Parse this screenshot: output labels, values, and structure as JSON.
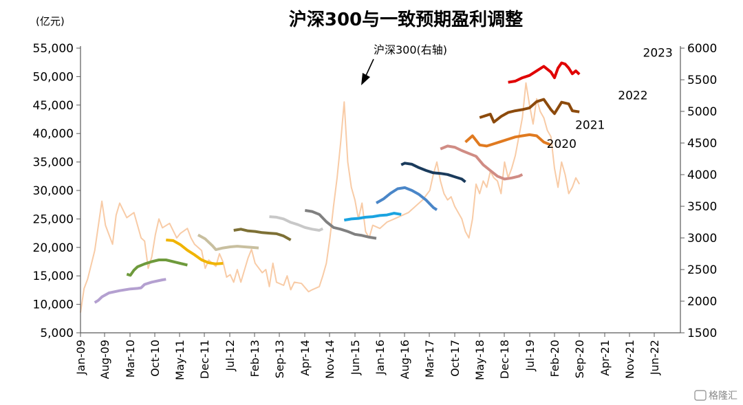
{
  "chart_data": {
    "type": "line",
    "title": "沪深300与一致预期盈利调整",
    "left_unit": "(亿元)",
    "left_axis": {
      "min": 5000,
      "max": 55000,
      "ticks": [
        "55,000",
        "50,000",
        "45,000",
        "40,000",
        "35,000",
        "30,000",
        "25,000",
        "20,000",
        "15,000",
        "10,000",
        "5,000"
      ]
    },
    "right_axis": {
      "min": 1500,
      "max": 6000,
      "ticks": [
        "6000",
        "5500",
        "5000",
        "4500",
        "4000",
        "3500",
        "3000",
        "2500",
        "2000",
        "1500"
      ]
    },
    "x_ticks": [
      "Jan-09",
      "Aug-09",
      "Mar-10",
      "Oct-10",
      "May-11",
      "Dec-11",
      "Jul-12",
      "Feb-13",
      "Sep-13",
      "Apr-14",
      "Nov-14",
      "Jun-15",
      "Jan-16",
      "Aug-16",
      "Mar-17",
      "Oct-17",
      "May-18",
      "Dec-18",
      "Jul-19",
      "Feb-20",
      "Sep-20",
      "Apr-21",
      "Nov-21",
      "Jun-22"
    ],
    "annotation": "沪深300(右轴)",
    "year_labels": [
      {
        "text": "2020",
        "t": 135,
        "v": 37500
      },
      {
        "text": "2021",
        "t": 143,
        "v": 40800
      },
      {
        "text": "2022",
        "t": 155,
        "v": 46000
      },
      {
        "text": "2023",
        "t": 162,
        "v": 53500
      }
    ],
    "index_series": {
      "name": "沪深300",
      "color": "#f8cba6",
      "axis": "right",
      "points": [
        [
          0,
          1820
        ],
        [
          1,
          2200
        ],
        [
          2,
          2350
        ],
        [
          4,
          2800
        ],
        [
          6,
          3580
        ],
        [
          7,
          3200
        ],
        [
          9,
          2900
        ],
        [
          10,
          3360
        ],
        [
          11,
          3550
        ],
        [
          13,
          3320
        ],
        [
          15,
          3400
        ],
        [
          17,
          3000
        ],
        [
          18,
          2950
        ],
        [
          19,
          2520
        ],
        [
          20,
          2700
        ],
        [
          21,
          3050
        ],
        [
          22,
          3300
        ],
        [
          23,
          3160
        ],
        [
          25,
          3230
        ],
        [
          27,
          3000
        ],
        [
          28,
          3070
        ],
        [
          30,
          3150
        ],
        [
          31,
          3000
        ],
        [
          32,
          2900
        ],
        [
          34,
          2800
        ],
        [
          35,
          2520
        ],
        [
          36,
          2650
        ],
        [
          38,
          2550
        ],
        [
          39,
          2750
        ],
        [
          40,
          2620
        ],
        [
          41,
          2380
        ],
        [
          42,
          2420
        ],
        [
          43,
          2300
        ],
        [
          44,
          2500
        ],
        [
          45,
          2300
        ],
        [
          47,
          2680
        ],
        [
          48,
          2820
        ],
        [
          49,
          2600
        ],
        [
          51,
          2450
        ],
        [
          52,
          2500
        ],
        [
          53,
          2230
        ],
        [
          54,
          2600
        ],
        [
          55,
          2300
        ],
        [
          57,
          2250
        ],
        [
          58,
          2400
        ],
        [
          59,
          2180
        ],
        [
          60,
          2300
        ],
        [
          62,
          2280
        ],
        [
          64,
          2150
        ],
        [
          65,
          2180
        ],
        [
          67,
          2230
        ],
        [
          68,
          2400
        ],
        [
          69,
          2600
        ],
        [
          70,
          3000
        ],
        [
          71,
          3500
        ],
        [
          72,
          3950
        ],
        [
          73,
          4500
        ],
        [
          74,
          5150
        ],
        [
          75,
          4200
        ],
        [
          76,
          3800
        ],
        [
          77,
          3600
        ],
        [
          78,
          3300
        ],
        [
          79,
          3550
        ],
        [
          80,
          3100
        ],
        [
          81,
          3000
        ],
        [
          82,
          3200
        ],
        [
          84,
          3150
        ],
        [
          86,
          3250
        ],
        [
          88,
          3300
        ],
        [
          90,
          3350
        ],
        [
          92,
          3400
        ],
        [
          94,
          3500
        ],
        [
          96,
          3600
        ],
        [
          98,
          3750
        ],
        [
          99,
          4000
        ],
        [
          100,
          4200
        ],
        [
          101,
          3900
        ],
        [
          102,
          3700
        ],
        [
          103,
          3600
        ],
        [
          104,
          3650
        ],
        [
          105,
          3500
        ],
        [
          106,
          3400
        ],
        [
          107,
          3300
        ],
        [
          108,
          3100
        ],
        [
          109,
          3000
        ],
        [
          110,
          3300
        ],
        [
          111,
          3850
        ],
        [
          112,
          3700
        ],
        [
          113,
          3900
        ],
        [
          114,
          3800
        ],
        [
          115,
          4050
        ],
        [
          116,
          3950
        ],
        [
          117,
          3900
        ],
        [
          118,
          3700
        ],
        [
          119,
          4200
        ],
        [
          120,
          3950
        ],
        [
          121,
          4100
        ],
        [
          122,
          4300
        ],
        [
          123,
          4600
        ],
        [
          124,
          4900
        ],
        [
          125,
          5450
        ],
        [
          126,
          5100
        ],
        [
          127,
          4800
        ],
        [
          128,
          5200
        ],
        [
          129,
          5000
        ],
        [
          130,
          4900
        ],
        [
          131,
          4700
        ],
        [
          132,
          4600
        ],
        [
          133,
          4100
        ],
        [
          134,
          3800
        ],
        [
          135,
          4200
        ],
        [
          136,
          4000
        ],
        [
          137,
          3700
        ],
        [
          138,
          3800
        ],
        [
          139,
          3950
        ],
        [
          140,
          3850
        ]
      ]
    },
    "earnings_series": [
      {
        "color": "#b4a0d0",
        "points": [
          [
            4,
            10300
          ],
          [
            5,
            10700
          ],
          [
            6,
            11300
          ],
          [
            8,
            12000
          ],
          [
            11,
            12400
          ],
          [
            14,
            12700
          ],
          [
            16,
            12800
          ],
          [
            17,
            12900
          ],
          [
            18,
            13500
          ],
          [
            20,
            13900
          ],
          [
            23,
            14300
          ],
          [
            24,
            14400
          ]
        ]
      },
      {
        "color": "#6e9a3c",
        "points": [
          [
            13,
            15300
          ],
          [
            14,
            15100
          ],
          [
            15,
            16000
          ],
          [
            16,
            16600
          ],
          [
            18,
            17100
          ],
          [
            20,
            17500
          ],
          [
            22,
            17800
          ],
          [
            24,
            17800
          ],
          [
            26,
            17500
          ],
          [
            28,
            17200
          ],
          [
            30,
            16900
          ]
        ]
      },
      {
        "color": "#f0b400",
        "points": [
          [
            24,
            21300
          ],
          [
            26,
            21200
          ],
          [
            28,
            20500
          ],
          [
            30,
            19500
          ],
          [
            32,
            18700
          ],
          [
            34,
            17800
          ],
          [
            36,
            17300
          ],
          [
            38,
            17100
          ],
          [
            40,
            17200
          ]
        ]
      },
      {
        "color": "#c8bf9f",
        "points": [
          [
            33,
            22200
          ],
          [
            35,
            21500
          ],
          [
            37,
            20300
          ],
          [
            38,
            19600
          ],
          [
            40,
            19900
          ],
          [
            42,
            20100
          ],
          [
            44,
            20200
          ],
          [
            46,
            20100
          ],
          [
            48,
            20000
          ],
          [
            50,
            19900
          ]
        ]
      },
      {
        "color": "#7d7035",
        "points": [
          [
            43,
            23000
          ],
          [
            45,
            23200
          ],
          [
            47,
            22900
          ],
          [
            49,
            22800
          ],
          [
            51,
            22600
          ],
          [
            53,
            22500
          ],
          [
            55,
            22400
          ],
          [
            57,
            22000
          ],
          [
            59,
            21300
          ]
        ]
      },
      {
        "color": "#c8c8c8",
        "points": [
          [
            53,
            25400
          ],
          [
            55,
            25300
          ],
          [
            57,
            25000
          ],
          [
            59,
            24400
          ],
          [
            61,
            24000
          ],
          [
            63,
            23500
          ],
          [
            65,
            23200
          ],
          [
            67,
            23000
          ],
          [
            68,
            23300
          ]
        ]
      },
      {
        "color": "#808080",
        "points": [
          [
            63,
            26500
          ],
          [
            65,
            26300
          ],
          [
            67,
            25800
          ],
          [
            69,
            24500
          ],
          [
            71,
            23500
          ],
          [
            73,
            23200
          ],
          [
            75,
            22800
          ],
          [
            77,
            22300
          ],
          [
            79,
            22100
          ],
          [
            81,
            21800
          ],
          [
            83,
            21600
          ]
        ]
      },
      {
        "color": "#1aa3e0",
        "points": [
          [
            74,
            24800
          ],
          [
            76,
            25000
          ],
          [
            78,
            25100
          ],
          [
            80,
            25300
          ],
          [
            82,
            25400
          ],
          [
            84,
            25600
          ],
          [
            86,
            25700
          ],
          [
            88,
            26000
          ],
          [
            90,
            25800
          ]
        ]
      },
      {
        "color": "#4a86c8",
        "points": [
          [
            83,
            27800
          ],
          [
            85,
            28500
          ],
          [
            87,
            29500
          ],
          [
            89,
            30300
          ],
          [
            91,
            30500
          ],
          [
            93,
            30000
          ],
          [
            95,
            29300
          ],
          [
            97,
            28300
          ],
          [
            99,
            27000
          ],
          [
            100,
            26600
          ]
        ]
      },
      {
        "color": "#1a3b5c",
        "points": [
          [
            90,
            34500
          ],
          [
            91,
            34800
          ],
          [
            93,
            34600
          ],
          [
            95,
            34000
          ],
          [
            97,
            33500
          ],
          [
            99,
            33100
          ],
          [
            101,
            33000
          ],
          [
            103,
            32800
          ],
          [
            105,
            32400
          ],
          [
            107,
            32000
          ],
          [
            108,
            31500
          ]
        ]
      },
      {
        "color": "#d08c84",
        "points": [
          [
            101,
            37300
          ],
          [
            103,
            37800
          ],
          [
            105,
            37600
          ],
          [
            107,
            37000
          ],
          [
            109,
            36500
          ],
          [
            111,
            36000
          ],
          [
            113,
            34500
          ],
          [
            115,
            33500
          ],
          [
            117,
            32500
          ],
          [
            119,
            32000
          ],
          [
            121,
            32200
          ],
          [
            123,
            32500
          ],
          [
            124,
            32800
          ]
        ]
      },
      {
        "color": "#e07a20",
        "points": [
          [
            108,
            38500
          ],
          [
            110,
            39600
          ],
          [
            112,
            38000
          ],
          [
            114,
            37800
          ],
          [
            116,
            38200
          ],
          [
            118,
            38600
          ],
          [
            120,
            39000
          ],
          [
            122,
            39400
          ],
          [
            124,
            39600
          ],
          [
            126,
            39800
          ],
          [
            128,
            39600
          ],
          [
            130,
            38500
          ],
          [
            132,
            38000
          ]
        ]
      },
      {
        "color": "#8c4a0c",
        "points": [
          [
            112,
            42800
          ],
          [
            114,
            43200
          ],
          [
            115,
            43400
          ],
          [
            116,
            42000
          ],
          [
            118,
            43000
          ],
          [
            120,
            43700
          ],
          [
            122,
            44000
          ],
          [
            124,
            44200
          ],
          [
            126,
            44500
          ],
          [
            128,
            45600
          ],
          [
            130,
            46000
          ],
          [
            132,
            44200
          ],
          [
            133,
            43500
          ],
          [
            135,
            45500
          ],
          [
            137,
            45200
          ],
          [
            138,
            44000
          ],
          [
            140,
            43800
          ]
        ]
      },
      {
        "color": "#e00000",
        "points": [
          [
            120,
            49000
          ],
          [
            122,
            49200
          ],
          [
            124,
            49800
          ],
          [
            126,
            50200
          ],
          [
            128,
            51000
          ],
          [
            130,
            51800
          ],
          [
            132,
            50800
          ],
          [
            133,
            49800
          ],
          [
            134,
            51500
          ],
          [
            135,
            52400
          ],
          [
            136,
            52200
          ],
          [
            137,
            51500
          ],
          [
            138,
            50500
          ],
          [
            139,
            51000
          ],
          [
            140,
            50400
          ]
        ]
      }
    ],
    "grid": false,
    "legend": "none",
    "watermark": "格隆汇"
  }
}
